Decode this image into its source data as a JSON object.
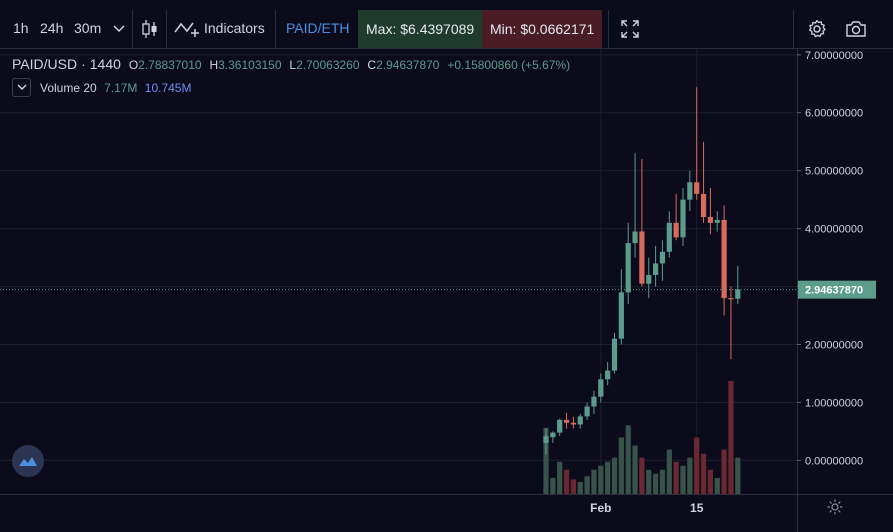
{
  "toolbar": {
    "intervals": [
      "1h",
      "24h",
      "30m"
    ],
    "indicators_label": "Indicators",
    "pair_button": "PAID/ETH",
    "max_label": "Max: $6.4397089",
    "min_label": "Min: $0.0662171"
  },
  "legend": {
    "symbol": "PAID/USD",
    "dot": "·",
    "interval": "1440",
    "o_label": "O",
    "o_value": "2.78837010",
    "h_label": "H",
    "h_value": "3.36103150",
    "l_label": "L",
    "l_value": "2.70063260",
    "c_label": "C",
    "c_value": "2.94637870",
    "change": "+0.15800860 (+5.67%)",
    "volume_label": "Volume 20",
    "volume_value": "7.17M",
    "volume_ma": "10.745M"
  },
  "colors": {
    "background": "#0c0b1c",
    "up": "#5b9c8b",
    "down": "#d86b5c",
    "up_volume": "#38544a",
    "down_volume": "#6a2833",
    "max_bg": "#1f3b2d",
    "min_bg": "#4a1c26",
    "pair": "#4a8fe0",
    "last_price_bg": "#5b9c8b",
    "volume_ma_color": "#6f8ef0"
  },
  "chart_data": {
    "type": "candlestick",
    "y_ticks": [
      "7.00000000",
      "6.00000000",
      "5.00000000",
      "4.00000000",
      "3.00000000",
      "2.00000000",
      "1.00000000",
      "0.00000000"
    ],
    "y_tick_values": [
      7,
      6,
      5,
      4,
      3,
      2,
      1,
      0
    ],
    "ylim": [
      -0.58,
      7.1
    ],
    "x_ticks": [
      {
        "label": "Feb",
        "index": 8
      },
      {
        "label": "15",
        "index": 22
      }
    ],
    "last_price": 2.9463787,
    "last_price_label": "2.94637870",
    "candles": [
      {
        "o": 0.3,
        "h": 0.55,
        "l": 0.1,
        "c": 0.42,
        "v": 0.82
      },
      {
        "o": 0.4,
        "h": 0.5,
        "l": 0.3,
        "c": 0.48,
        "v": 0.2
      },
      {
        "o": 0.48,
        "h": 0.72,
        "l": 0.42,
        "c": 0.7,
        "v": 0.4
      },
      {
        "o": 0.7,
        "h": 0.82,
        "l": 0.55,
        "c": 0.65,
        "v": 0.3
      },
      {
        "o": 0.65,
        "h": 0.75,
        "l": 0.55,
        "c": 0.62,
        "v": 0.18
      },
      {
        "o": 0.62,
        "h": 0.8,
        "l": 0.55,
        "c": 0.76,
        "v": 0.15
      },
      {
        "o": 0.76,
        "h": 1.0,
        "l": 0.7,
        "c": 0.93,
        "v": 0.22
      },
      {
        "o": 0.93,
        "h": 1.2,
        "l": 0.8,
        "c": 1.1,
        "v": 0.3
      },
      {
        "o": 1.1,
        "h": 1.5,
        "l": 1.0,
        "c": 1.4,
        "v": 0.35
      },
      {
        "o": 1.4,
        "h": 1.7,
        "l": 1.3,
        "c": 1.55,
        "v": 0.4
      },
      {
        "o": 1.55,
        "h": 2.2,
        "l": 1.5,
        "c": 2.1,
        "v": 0.45
      },
      {
        "o": 2.1,
        "h": 3.3,
        "l": 2.0,
        "c": 2.9,
        "v": 0.7
      },
      {
        "o": 2.9,
        "h": 4.1,
        "l": 2.7,
        "c": 3.75,
        "v": 0.85
      },
      {
        "o": 3.75,
        "h": 5.3,
        "l": 3.5,
        "c": 3.95,
        "v": 0.6
      },
      {
        "o": 3.95,
        "h": 5.2,
        "l": 3.0,
        "c": 3.05,
        "v": 0.45
      },
      {
        "o": 3.05,
        "h": 3.5,
        "l": 2.8,
        "c": 3.2,
        "v": 0.3
      },
      {
        "o": 3.2,
        "h": 3.7,
        "l": 3.0,
        "c": 3.4,
        "v": 0.25
      },
      {
        "o": 3.4,
        "h": 3.8,
        "l": 3.1,
        "c": 3.6,
        "v": 0.3
      },
      {
        "o": 3.6,
        "h": 4.3,
        "l": 3.5,
        "c": 4.1,
        "v": 0.55
      },
      {
        "o": 4.1,
        "h": 4.6,
        "l": 3.8,
        "c": 3.85,
        "v": 0.4
      },
      {
        "o": 3.85,
        "h": 4.7,
        "l": 3.7,
        "c": 4.5,
        "v": 0.35
      },
      {
        "o": 4.5,
        "h": 5.0,
        "l": 4.3,
        "c": 4.8,
        "v": 0.45
      },
      {
        "o": 4.8,
        "h": 6.44,
        "l": 4.5,
        "c": 4.6,
        "v": 0.7
      },
      {
        "o": 4.6,
        "h": 5.5,
        "l": 4.1,
        "c": 4.2,
        "v": 0.5
      },
      {
        "o": 4.2,
        "h": 4.7,
        "l": 3.9,
        "c": 4.1,
        "v": 0.3
      },
      {
        "o": 4.1,
        "h": 4.3,
        "l": 3.95,
        "c": 4.15,
        "v": 0.2
      },
      {
        "o": 4.15,
        "h": 4.4,
        "l": 2.5,
        "c": 2.8,
        "v": 0.55
      },
      {
        "o": 2.8,
        "h": 3.0,
        "l": 1.75,
        "c": 2.78,
        "v": 1.4
      },
      {
        "o": 2.79,
        "h": 3.36,
        "l": 2.7,
        "c": 2.95,
        "v": 0.45
      }
    ]
  }
}
